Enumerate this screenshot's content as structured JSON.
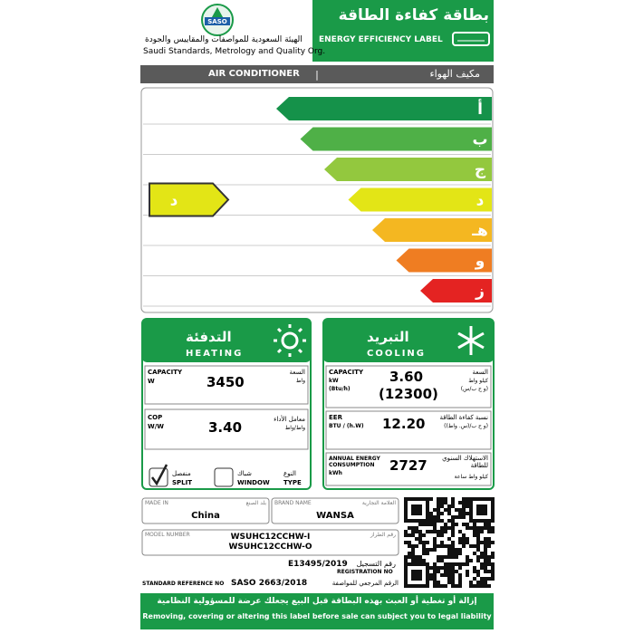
{
  "header": {
    "logo": "SASO",
    "org_ar": "الهيئة السعودية للمواصفات والمقاييس والجودة",
    "org_en": "Saudi Standards, Metrology and Quality Org.",
    "label_ar": "بطاقة كفاءة الطاقة",
    "label_en": "ENERGY EFFICIENCY LABEL"
  },
  "product": {
    "en": "AIR CONDITIONER",
    "ar": "مكيف الهواء"
  },
  "scale": {
    "grades": [
      "أ",
      "ب",
      "ج",
      "د",
      "هـ",
      "و",
      "ز"
    ],
    "rating": "د"
  },
  "heating": {
    "title_ar": "التدفئة",
    "title_en": "HEATING",
    "capacity": {
      "label_en": "CAPACITY",
      "unit_en": "W",
      "value": "3450",
      "label_ar": "السعة",
      "unit_ar": "واط"
    },
    "cop": {
      "label_en": "COP",
      "unit_en": "W/W",
      "value": "3.40",
      "label_ar": "معامل الأداء",
      "unit_ar": "واط/واط"
    },
    "type": {
      "label_ar": "النوع",
      "label_en": "TYPE",
      "options": [
        {
          "ar": "منفصل",
          "en": "SPLIT",
          "checked": true
        },
        {
          "ar": "شباك",
          "en": "WINDOW",
          "checked": false
        }
      ]
    }
  },
  "cooling": {
    "title_ar": "التبريد",
    "title_en": "COOLING",
    "capacity": {
      "label_en": "CAPACITY",
      "unit_en": "kW",
      "unit_en2": "(Btu/h)",
      "value": "3.60",
      "value2": "(12300)",
      "label_ar": "السعة",
      "unit_ar": "كيلو واط",
      "unit_ar2": "(و ح ب/س)"
    },
    "eer": {
      "label_en": "EER",
      "unit_en": "BTU / (h.W)",
      "value": "12.20",
      "label_ar": "نسبة كفاءة الطاقة",
      "unit_ar": "(و ح ب/(س. واط))"
    },
    "annual": {
      "label_en": "ANNUAL ENERGY CONSUMPTION",
      "unit_en": "kWh",
      "value": "2727",
      "label_ar": "الاستهلاك السنوي للطاقة",
      "unit_ar": "كيلو واط ساعة"
    }
  },
  "fields": {
    "made_in": {
      "label_en": "MADE IN",
      "label_ar": "بلد الصنع",
      "value": "China"
    },
    "brand": {
      "label_en": "BRAND NAME",
      "label_ar": "العلامة التجارية",
      "value": "WANSA"
    },
    "model": {
      "label_en": "MODEL NUMBER",
      "label_ar": "رقم الطراز",
      "values": [
        "WSUHC12CCHW-I",
        "WSUHC12CCHW-O"
      ]
    },
    "registration": {
      "value": "E13495/2019",
      "label_ar": "رقم التسجيل",
      "label_en": "REGISTRATION NO"
    },
    "standard": {
      "label_en": "STANDARD REFERENCE NO",
      "value": "SASO 2663/2018",
      "label_ar": "الرقم المرجعي للمواصفة"
    }
  },
  "footer": {
    "ar": "إزالة أو تغطية أو العبث بهذه البطاقة قبل البيع يجعلك عرضة للمسؤولية النظامية",
    "en": "Removing, covering or altering this label before sale can subject you to legal liability"
  }
}
